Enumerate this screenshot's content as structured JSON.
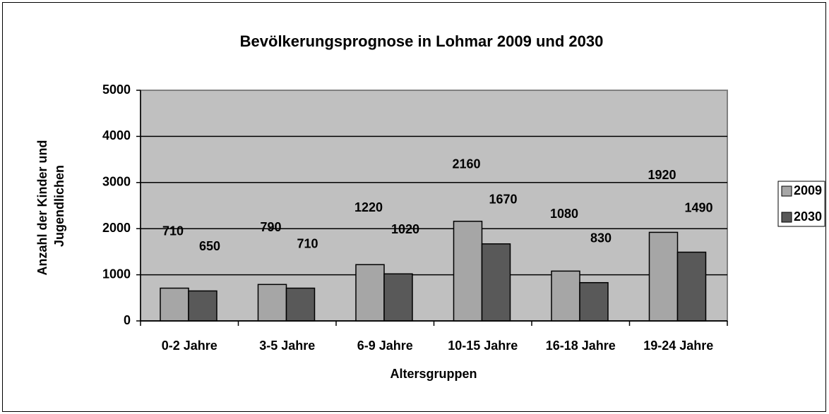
{
  "chart_data": {
    "type": "bar",
    "title": "Bevölkerungsprognose in Lohmar 2009 und 2030",
    "x_label": "Altersgruppen",
    "y_label": "Anzahl der Kinder und Jugendlichen",
    "categories": [
      "0-2 Jahre",
      "3-5 Jahre",
      "6-9 Jahre",
      "10-15 Jahre",
      "16-18 Jahre",
      "19-24 Jahre"
    ],
    "series": [
      {
        "name": "2009",
        "color": "#a6a6a6",
        "values": [
          710,
          790,
          1220,
          2160,
          1080,
          1920
        ]
      },
      {
        "name": "2030",
        "color": "#595959",
        "values": [
          650,
          710,
          1020,
          1670,
          830,
          1490
        ]
      }
    ],
    "ylim": [
      0,
      5000
    ],
    "yticks": [
      0,
      1000,
      2000,
      3000,
      4000,
      5000
    ],
    "grid": true,
    "legend": "right"
  }
}
